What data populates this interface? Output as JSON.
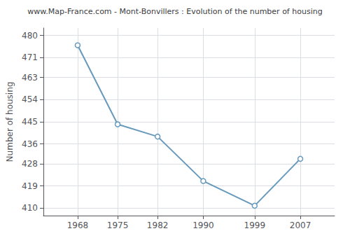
{
  "chart_data": {
    "type": "line",
    "title": "www.Map-France.com - Mont-Bonvillers : Evolution of the number of housing",
    "ylabel": "Number of housing",
    "x": [
      1968,
      1975,
      1982,
      1990,
      1999,
      2007
    ],
    "values": [
      476,
      444,
      439,
      421,
      411,
      430
    ],
    "color": "#6699bb",
    "marker": "circle",
    "xlim": [
      1962,
      2013
    ],
    "xticks": [
      1968,
      1975,
      1982,
      1990,
      1999,
      2007
    ],
    "ylim": [
      407,
      483
    ],
    "yticks": [
      410,
      419,
      428,
      436,
      445,
      454,
      463,
      471,
      480
    ],
    "grid": true
  }
}
